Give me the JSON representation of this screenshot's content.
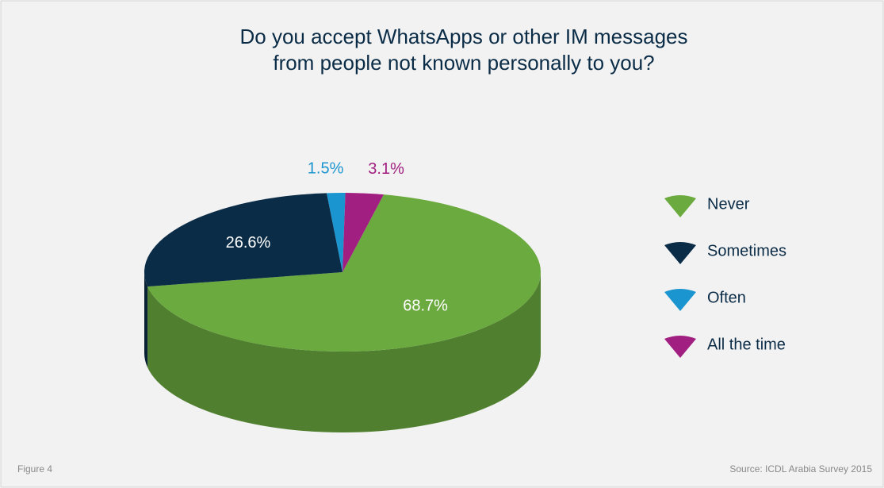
{
  "chart_data": {
    "type": "pie",
    "title": [
      "Do you accept WhatsApps or other IM messages",
      "from people not known personally to you?"
    ],
    "categories": [
      "Never",
      "Sometimes",
      "Often",
      "All the time"
    ],
    "values": [
      68.7,
      26.6,
      1.5,
      3.1
    ],
    "value_labels": [
      "68.7%",
      "26.6%",
      "1.5%",
      "3.1%"
    ],
    "colors": [
      "#6aaa3e",
      "#0b2c47",
      "#1b95cf",
      "#a11f80"
    ],
    "legend": "right",
    "figure_label": "Figure 4",
    "source": "Source: ICDL Arabia Survey 2015"
  }
}
